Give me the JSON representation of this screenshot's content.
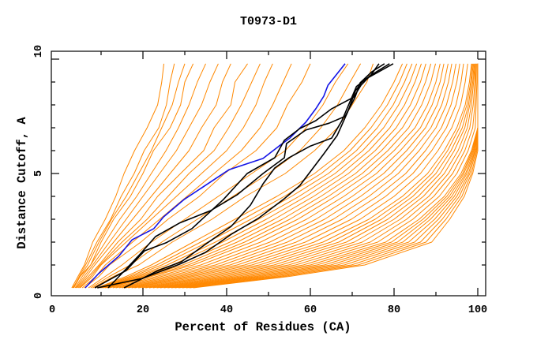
{
  "chart_data": {
    "type": "line",
    "title": "T0973-D1",
    "xlabel": "Percent of Residues (CA)",
    "ylabel": "Distance Cutoff, A",
    "xlim": [
      0,
      100
    ],
    "ylim": [
      0,
      10
    ],
    "x_tick_values": [
      0,
      20,
      40,
      60,
      80,
      100
    ],
    "x_tick_labels": [
      "0",
      "20",
      "40",
      "60",
      "80",
      "100"
    ],
    "y_tick_values": [
      0,
      5,
      10
    ],
    "y_tick_labels": [
      "0",
      "5",
      "10"
    ],
    "x_minor_step": 10,
    "y_minor_step": 1,
    "grid": false,
    "legend": "none",
    "models": {
      "name": "all models",
      "color": "#ff8800",
      "y_levels": [
        0,
        0.5,
        1,
        2,
        3,
        4,
        5,
        6,
        7,
        8,
        9,
        9.8
      ],
      "curves_x": [
        [
          3,
          4.5,
          6,
          8,
          11,
          13.5,
          15.5,
          18,
          21,
          23.5,
          24.5,
          25
        ],
        [
          3.2,
          5,
          6.8,
          9.5,
          12.5,
          16,
          19,
          22,
          24.5,
          27,
          28.5,
          30
        ],
        [
          3.4,
          4.8,
          6.3,
          9,
          12.3,
          14.8,
          17.9,
          20.3,
          23.8,
          25.6,
          26.5,
          27.5
        ],
        [
          3.5,
          5,
          7.5,
          10,
          13,
          17,
          20,
          22.5,
          26.5,
          29,
          30,
          32
        ],
        [
          3.8,
          5.5,
          7.5,
          11,
          14.5,
          18.5,
          22,
          25.5,
          28.5,
          31,
          33,
          35
        ],
        [
          4,
          6,
          8,
          12,
          16,
          20,
          24,
          28,
          31,
          34,
          36,
          38
        ],
        [
          4.2,
          6.5,
          8.5,
          13,
          17.5,
          22,
          26.5,
          31,
          34,
          37.5,
          39,
          41
        ],
        [
          4.5,
          7,
          9.5,
          14,
          19.5,
          23.5,
          29,
          34.5,
          37,
          41,
          42,
          45
        ],
        [
          4.8,
          7.5,
          9.8,
          15,
          21,
          26,
          31,
          37,
          40.5,
          43.5,
          46,
          48
        ],
        [
          5,
          8,
          10,
          16,
          22,
          28,
          34,
          40,
          44,
          47,
          49,
          51
        ],
        [
          5.5,
          8.8,
          11,
          17.5,
          24,
          30.5,
          37,
          43.5,
          48,
          51,
          53.5,
          55.5
        ],
        [
          6,
          9.5,
          12,
          19.5,
          26,
          33.5,
          39.5,
          47,
          52,
          54.5,
          58,
          60
        ],
        [
          7,
          11,
          15,
          22,
          30,
          38,
          46,
          54,
          59,
          63,
          66,
          69
        ],
        [
          7.5,
          12,
          17,
          24.5,
          33,
          41.5,
          50,
          57.5,
          62.5,
          66.5,
          69.5,
          72
        ],
        [
          8,
          13,
          19,
          27,
          36.5,
          44.5,
          54,
          61,
          66.5,
          70,
          73.5,
          75
        ],
        [
          9,
          16,
          22,
          32,
          42,
          52,
          61,
          68,
          73,
          77,
          80,
          82
        ],
        [
          9.4,
          16.8,
          23.3,
          33.8,
          43.9,
          53.8,
          62.6,
          69.5,
          74.5,
          78.4,
          81.3,
          83.1
        ],
        [
          9.8,
          17.5,
          24.5,
          35.5,
          45.8,
          55.5,
          64.3,
          71,
          76,
          79.8,
          82.5,
          84.3
        ],
        [
          10.1,
          18.3,
          25.8,
          37.3,
          47.6,
          57.3,
          65.9,
          72.5,
          77.5,
          81.1,
          83.8,
          85.4
        ],
        [
          10.5,
          19,
          27,
          39,
          49.5,
          59,
          67.5,
          74,
          79,
          82.5,
          85,
          86.5
        ],
        [
          10.9,
          19.8,
          28.3,
          40.8,
          51.4,
          60.8,
          69.1,
          75.5,
          80.5,
          83.9,
          86.3,
          87.6
        ],
        [
          11.3,
          20.5,
          29.5,
          42.5,
          53.3,
          62.5,
          70.8,
          77,
          82,
          85.3,
          87.5,
          88.8
        ],
        [
          11.6,
          21.3,
          30.8,
          44.3,
          55.1,
          64.3,
          72.4,
          78.5,
          83.5,
          86.6,
          88.8,
          89.9
        ],
        [
          12,
          22,
          32,
          46,
          57,
          66,
          74,
          80,
          85,
          88,
          90,
          91
        ],
        [
          12.8,
          23.3,
          33.8,
          48.1,
          59.1,
          68,
          75.8,
          81.5,
          86.3,
          89.1,
          91,
          91.9
        ],
        [
          13.5,
          24.5,
          35.5,
          50.3,
          61.3,
          70,
          77.5,
          83,
          87.5,
          90.3,
          92,
          92.9
        ],
        [
          14.3,
          25.8,
          37.3,
          52.4,
          63.4,
          72,
          79.3,
          84.5,
          88.8,
          91.4,
          93,
          93.8
        ],
        [
          15,
          27,
          39,
          54.5,
          65.5,
          74,
          81,
          86,
          90,
          92.5,
          94,
          94.8
        ],
        [
          15.8,
          28.3,
          40.8,
          56.6,
          67.6,
          76,
          82.8,
          87.5,
          91.3,
          93.6,
          95,
          95.7
        ],
        [
          16.5,
          29.5,
          42.5,
          58.8,
          69.8,
          78,
          84.5,
          89,
          92.5,
          94.8,
          96,
          96.6
        ],
        [
          17.3,
          30.8,
          44.3,
          60.9,
          71.9,
          80,
          86.3,
          90.5,
          93.8,
          95.9,
          97,
          97.6
        ],
        [
          18,
          32,
          46,
          63,
          74,
          82,
          88,
          92,
          95,
          97,
          98,
          98.5
        ],
        [
          18.9,
          33.5,
          47.8,
          64.9,
          75.5,
          83.3,
          89,
          92.8,
          95.6,
          97.4,
          98.3,
          98.7
        ],
        [
          19.8,
          35,
          49.5,
          66.8,
          77,
          84.5,
          90,
          93.6,
          96.3,
          97.8,
          98.5,
          98.9
        ],
        [
          20.6,
          36.5,
          51.3,
          68.6,
          78.5,
          85.8,
          91,
          94.4,
          96.9,
          98.1,
          98.8,
          99.1
        ],
        [
          21.5,
          38,
          53,
          70.5,
          80,
          87,
          92,
          95.3,
          97.5,
          98.5,
          99,
          99.3
        ],
        [
          22.4,
          39.5,
          54.8,
          72.4,
          81.5,
          88.3,
          93,
          96.1,
          98.1,
          98.9,
          99.3,
          99.4
        ],
        [
          23.3,
          41,
          56.5,
          74.3,
          83,
          89.5,
          94,
          96.9,
          98.8,
          99.3,
          99.5,
          99.6
        ],
        [
          24.1,
          42.5,
          58.3,
          76.1,
          84.5,
          90.8,
          95,
          97.7,
          99.4,
          99.6,
          99.8,
          99.8
        ],
        [
          25,
          44,
          60,
          78,
          86,
          92,
          96,
          98.5,
          100,
          100,
          100,
          100
        ],
        [
          25.9,
          45.4,
          61.6,
          79.4,
          86.9,
          92.6,
          96.4,
          98.7,
          100,
          100,
          100,
          100
        ],
        [
          26.8,
          46.8,
          63.3,
          80.8,
          87.8,
          93.2,
          96.7,
          98.9,
          100,
          100,
          100,
          100
        ],
        [
          27.6,
          48.1,
          64.9,
          82.1,
          88.7,
          93.8,
          97.1,
          99.1,
          100,
          100,
          100,
          100
        ],
        [
          28.5,
          49.5,
          66.5,
          83.5,
          89.7,
          94.4,
          97.4,
          99.3,
          100,
          100,
          100,
          100
        ],
        [
          29.4,
          50.9,
          68.1,
          84.9,
          90.6,
          95,
          97.8,
          99.4,
          100,
          100,
          100,
          100
        ],
        [
          30.3,
          52.3,
          69.8,
          86.3,
          91.5,
          95.6,
          98.1,
          99.6,
          100,
          100,
          100,
          100
        ],
        [
          31.1,
          53.6,
          71.4,
          87.6,
          92.4,
          96.2,
          98.5,
          99.8,
          100,
          100,
          100,
          100
        ],
        [
          32,
          55,
          73,
          89,
          93.3,
          96.8,
          98.8,
          100,
          100,
          100,
          100,
          100
        ]
      ]
    },
    "highlighted": {
      "name": "selected models",
      "color": "#000000",
      "lines": [
        [
          [
            8.5,
            0
          ],
          [
            16,
            0.76
          ],
          [
            20.4,
            1.62
          ],
          [
            25.5,
            1.97
          ],
          [
            31.7,
            2.59
          ],
          [
            34.3,
            3.03
          ],
          [
            39.2,
            3.86
          ],
          [
            44.9,
            5.0
          ],
          [
            51.5,
            5.69
          ],
          [
            53.8,
            6.45
          ],
          [
            57.5,
            6.97
          ],
          [
            61.3,
            7.31
          ],
          [
            65.1,
            7.83
          ],
          [
            70.4,
            8.34
          ],
          [
            71.3,
            8.62
          ],
          [
            72.1,
            8.86
          ],
          [
            74.5,
            9.31
          ],
          [
            76.4,
            9.8
          ]
        ],
        [
          [
            11.7,
            0
          ],
          [
            19.2,
            1.45
          ],
          [
            23,
            2.24
          ],
          [
            28.7,
            2.83
          ],
          [
            36.2,
            3.38
          ],
          [
            42.5,
            4.07
          ],
          [
            48.7,
            5.0
          ],
          [
            53.8,
            5.69
          ],
          [
            54.3,
            6.31
          ],
          [
            58.9,
            6.9
          ],
          [
            64.5,
            7.2
          ],
          [
            68.3,
            7.5
          ],
          [
            70.6,
            8.3
          ],
          [
            71.9,
            8.97
          ],
          [
            74.7,
            9.45
          ],
          [
            77.7,
            9.8
          ]
        ],
        [
          [
            15.5,
            0
          ],
          [
            23.6,
            0.76
          ],
          [
            29.2,
            1.14
          ],
          [
            34.9,
            1.9
          ],
          [
            41.1,
            2.69
          ],
          [
            45.7,
            3.62
          ],
          [
            48.7,
            4.55
          ],
          [
            51.5,
            5.24
          ],
          [
            55,
            5.7
          ],
          [
            60,
            6.2
          ],
          [
            65.1,
            6.55
          ],
          [
            67.5,
            7.3
          ],
          [
            69.6,
            8.2
          ],
          [
            71,
            8.8
          ],
          [
            74.5,
            9.3
          ],
          [
            78.9,
            9.8
          ]
        ],
        [
          [
            9.1,
            0
          ],
          [
            19.8,
            0.41
          ],
          [
            28.7,
            1.03
          ],
          [
            34.9,
            1.55
          ],
          [
            41.1,
            2.34
          ],
          [
            47.5,
            3.03
          ],
          [
            53.8,
            3.9
          ],
          [
            57.5,
            4.48
          ],
          [
            63.2,
            5.86
          ],
          [
            66.4,
            6.66
          ],
          [
            68.9,
            7.69
          ],
          [
            70.8,
            8.62
          ],
          [
            72.6,
            9.07
          ],
          [
            76,
            9.41
          ],
          [
            79.8,
            9.8
          ]
        ]
      ]
    },
    "best": {
      "name": "best model",
      "color": "#1414e6",
      "points": [
        [
          6.2,
          0
        ],
        [
          9.4,
          0.62
        ],
        [
          14.2,
          1.38
        ],
        [
          17.4,
          2.1
        ],
        [
          22.6,
          2.59
        ],
        [
          24.9,
          3.1
        ],
        [
          29.8,
          3.86
        ],
        [
          35.5,
          4.55
        ],
        [
          40.6,
          5.17
        ],
        [
          48.7,
          5.66
        ],
        [
          52.5,
          6.2
        ],
        [
          55.1,
          6.55
        ],
        [
          58.9,
          7.24
        ],
        [
          61.3,
          7.83
        ],
        [
          63.2,
          8.38
        ],
        [
          64.2,
          8.86
        ],
        [
          68.3,
          9.8
        ]
      ]
    }
  }
}
